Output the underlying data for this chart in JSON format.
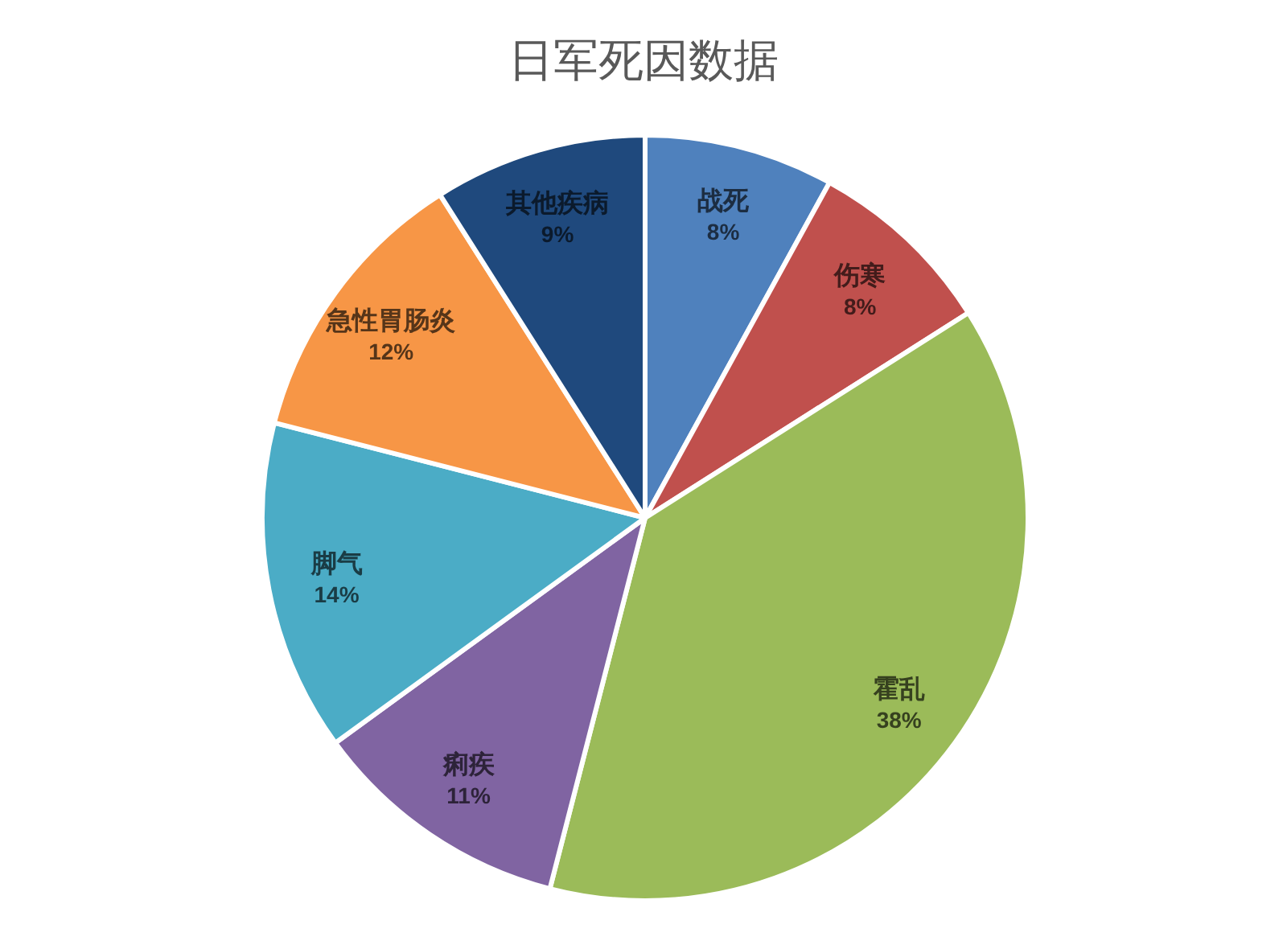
{
  "chart_data": {
    "type": "pie",
    "title": "日军死因数据",
    "categories": [
      "战死",
      "伤寒",
      "霍乱",
      "痢疾",
      "脚气",
      "急性胃肠炎",
      "其他疾病"
    ],
    "values": [
      8,
      8,
      38,
      11,
      14,
      12,
      9
    ],
    "colors": [
      "#4f81bd",
      "#c0504d",
      "#9bbb59",
      "#8064a2",
      "#4bacc6",
      "#f79646",
      "#1f497d"
    ],
    "value_labels": [
      "8%",
      "8%",
      "38%",
      "11%",
      "14%",
      "12%",
      "9%"
    ]
  }
}
